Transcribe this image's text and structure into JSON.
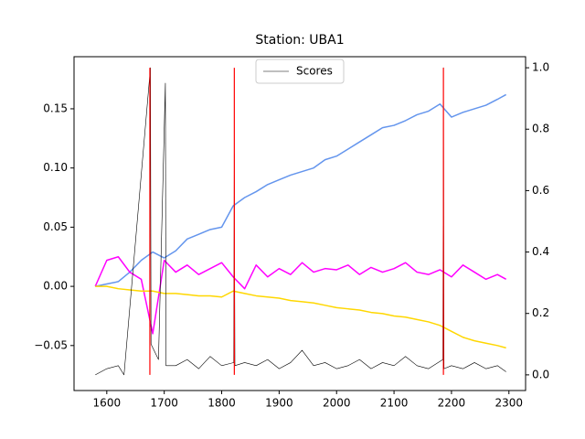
{
  "chart_data": {
    "type": "line",
    "title": "Station: UBA1",
    "xlim": [
      1543,
      2329
    ],
    "xticks": [
      1600,
      1700,
      1800,
      1900,
      2000,
      2100,
      2200,
      2300
    ],
    "ylim": [
      -0.088,
      0.194
    ],
    "yticks": [
      {
        "value": -0.05,
        "label": "−0.05"
      },
      {
        "value": 0,
        "label": "0.00"
      },
      {
        "value": 0.05,
        "label": "0.05"
      },
      {
        "value": 0.1,
        "label": "0.10"
      },
      {
        "value": 0.15,
        "label": "0.15"
      }
    ],
    "y2lim": [
      -0.051,
      1.036
    ],
    "y2ticks": [
      {
        "value": 0,
        "label": "0.0"
      },
      {
        "value": 0.2,
        "label": "0.2"
      },
      {
        "value": 0.4,
        "label": "0.4"
      },
      {
        "value": 0.6,
        "label": "0.6"
      },
      {
        "value": 0.8,
        "label": "0.8"
      },
      {
        "value": 1,
        "label": "1.0"
      }
    ],
    "legend": "upper center",
    "series": [
      {
        "color": "#6495ed",
        "x": [
          1580,
          1600,
          1620,
          1640,
          1660,
          1680,
          1700,
          1720,
          1740,
          1760,
          1780,
          1800,
          1820,
          1840,
          1860,
          1880,
          1900,
          1920,
          1940,
          1960,
          1980,
          2000,
          2020,
          2040,
          2060,
          2080,
          2100,
          2120,
          2140,
          2160,
          2180,
          2200,
          2220,
          2240,
          2260,
          2280,
          2295
        ],
        "values": [
          0.0,
          0.002,
          0.004,
          0.012,
          0.022,
          0.029,
          0.024,
          0.03,
          0.04,
          0.044,
          0.048,
          0.05,
          0.068,
          0.075,
          0.08,
          0.086,
          0.09,
          0.094,
          0.097,
          0.1,
          0.107,
          0.11,
          0.116,
          0.122,
          0.128,
          0.134,
          0.136,
          0.14,
          0.145,
          0.148,
          0.154,
          0.143,
          0.147,
          0.15,
          0.153,
          0.158,
          0.162
        ]
      },
      {
        "color": "#ff00ff",
        "x": [
          1580,
          1600,
          1620,
          1640,
          1660,
          1680,
          1700,
          1720,
          1740,
          1760,
          1780,
          1800,
          1820,
          1840,
          1860,
          1880,
          1900,
          1920,
          1940,
          1960,
          1980,
          2000,
          2020,
          2040,
          2060,
          2080,
          2100,
          2120,
          2140,
          2160,
          2180,
          2200,
          2220,
          2240,
          2260,
          2280,
          2295
        ],
        "values": [
          0.0,
          0.022,
          0.025,
          0.012,
          0.006,
          -0.04,
          0.022,
          0.012,
          0.018,
          0.01,
          0.015,
          0.02,
          0.008,
          -0.002,
          0.018,
          0.008,
          0.015,
          0.01,
          0.02,
          0.012,
          0.015,
          0.014,
          0.018,
          0.01,
          0.016,
          0.012,
          0.015,
          0.02,
          0.012,
          0.01,
          0.014,
          0.008,
          0.018,
          0.012,
          0.006,
          0.01,
          0.006
        ]
      },
      {
        "color": "#ffd700",
        "x": [
          1580,
          1600,
          1620,
          1640,
          1660,
          1680,
          1700,
          1720,
          1740,
          1760,
          1780,
          1800,
          1820,
          1840,
          1860,
          1880,
          1900,
          1920,
          1940,
          1960,
          1980,
          2000,
          2020,
          2040,
          2060,
          2080,
          2100,
          2120,
          2140,
          2160,
          2180,
          2200,
          2220,
          2240,
          2260,
          2280,
          2295
        ],
        "values": [
          0.0,
          0.0,
          -0.002,
          -0.003,
          -0.004,
          -0.004,
          -0.006,
          -0.006,
          -0.007,
          -0.008,
          -0.008,
          -0.009,
          -0.004,
          -0.006,
          -0.008,
          -0.009,
          -0.01,
          -0.012,
          -0.013,
          -0.014,
          -0.016,
          -0.018,
          -0.019,
          -0.02,
          -0.022,
          -0.023,
          -0.025,
          -0.026,
          -0.028,
          -0.03,
          -0.033,
          -0.038,
          -0.043,
          -0.046,
          -0.048,
          -0.05,
          -0.052
        ]
      },
      {
        "name": "Scores",
        "color": "#000000",
        "axis": "y2",
        "width": 0.6,
        "x": [
          1580,
          1600,
          1620,
          1630,
          1676,
          1677,
          1690,
          1702,
          1703,
          1720,
          1740,
          1760,
          1780,
          1800,
          1821,
          1822,
          1823,
          1840,
          1860,
          1880,
          1900,
          1920,
          1940,
          1960,
          1980,
          2000,
          2020,
          2040,
          2060,
          2080,
          2100,
          2120,
          2140,
          2160,
          2185,
          2186,
          2187,
          2200,
          2220,
          2240,
          2260,
          2280,
          2295
        ],
        "values": [
          0.0,
          0.02,
          0.03,
          0.0,
          1.0,
          0.1,
          0.05,
          0.95,
          0.03,
          0.03,
          0.05,
          0.02,
          0.06,
          0.03,
          0.04,
          0.72,
          0.03,
          0.04,
          0.03,
          0.05,
          0.02,
          0.04,
          0.08,
          0.03,
          0.04,
          0.02,
          0.03,
          0.05,
          0.02,
          0.04,
          0.03,
          0.06,
          0.03,
          0.02,
          0.05,
          1.0,
          0.02,
          0.03,
          0.02,
          0.04,
          0.02,
          0.03,
          0.01
        ]
      },
      {
        "color": "#ff0000",
        "axis": "y2",
        "width": 1.2,
        "x": [
          1675,
          1675,
          1675,
          1822,
          1822,
          1822,
          2186,
          2186
        ],
        "values": [
          0,
          1,
          null,
          0,
          1,
          null,
          0,
          1
        ]
      }
    ]
  }
}
